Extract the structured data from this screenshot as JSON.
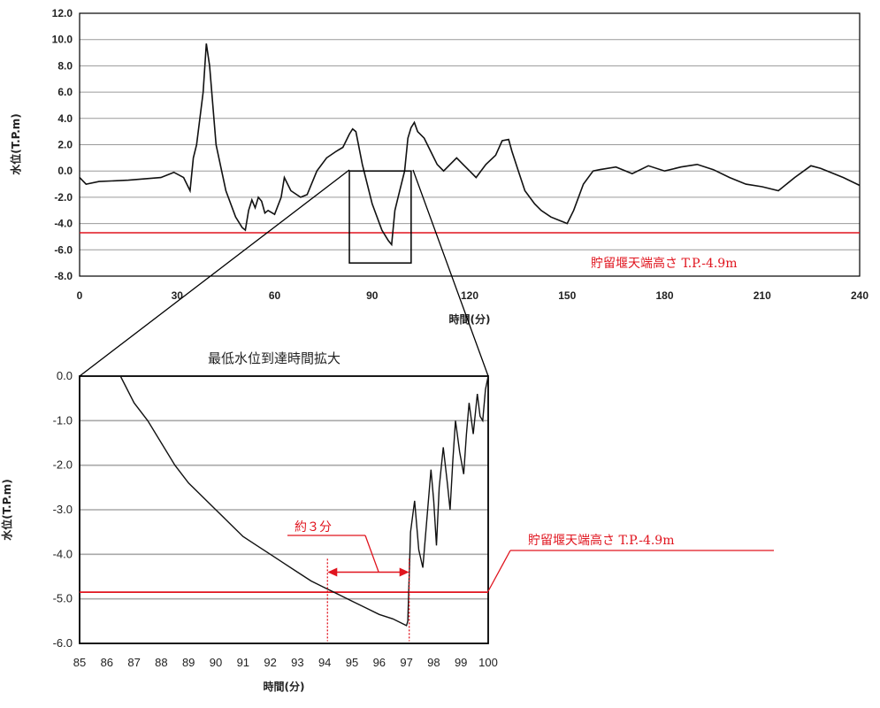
{
  "chart_data": [
    {
      "type": "line",
      "title": "",
      "xlabel": "時間(分)",
      "ylabel": "水位(T.P.m)",
      "xlim": [
        0,
        240
      ],
      "ylim": [
        -8,
        12
      ],
      "x_ticks": [
        "0",
        "30",
        "60",
        "90",
        "120",
        "150",
        "180",
        "210",
        "240"
      ],
      "y_ticks": [
        "12.0",
        "10.0",
        "8.0",
        "6.0",
        "4.0",
        "2.0",
        "0.0",
        "-2.0",
        "-4.0",
        "-6.0",
        "-8.0"
      ],
      "grid": true,
      "reference_line": {
        "label": "貯留堰天端高さ T.P.-4.9m",
        "y": -4.7,
        "color": "#e0141e"
      },
      "zoom_box": {
        "x": [
          83,
          102
        ],
        "y": [
          -7,
          0
        ]
      },
      "series": [
        {
          "color": "#111111",
          "x": [
            0,
            2,
            6,
            15,
            25,
            29,
            32,
            34,
            35,
            36,
            38,
            39,
            40,
            42,
            45,
            48,
            50,
            51,
            52,
            53,
            54,
            55,
            56,
            57,
            58,
            60,
            62,
            63,
            65,
            68,
            70,
            73,
            76,
            79,
            81,
            83,
            84,
            85,
            87,
            90,
            93,
            95,
            96,
            97,
            98,
            99,
            100,
            101,
            102,
            103,
            104,
            106,
            108,
            110,
            112,
            114,
            116,
            118,
            120,
            122,
            125,
            128,
            130,
            132,
            133,
            135,
            137,
            140,
            142,
            145,
            148,
            150,
            152,
            155,
            158,
            160,
            165,
            170,
            175,
            180,
            185,
            190,
            195,
            200,
            205,
            210,
            215,
            220,
            225,
            228,
            230,
            235,
            240
          ],
          "y": [
            -0.5,
            -1.0,
            -0.8,
            -0.7,
            -0.5,
            -0.1,
            -0.5,
            -1.5,
            1.0,
            2.0,
            6.0,
            9.7,
            8.0,
            2.0,
            -1.5,
            -3.5,
            -4.3,
            -4.5,
            -3.0,
            -2.2,
            -2.8,
            -2.0,
            -2.3,
            -3.2,
            -3.0,
            -3.3,
            -2.0,
            -0.5,
            -1.5,
            -2.0,
            -1.8,
            0.0,
            1.0,
            1.5,
            1.8,
            2.8,
            3.2,
            3.0,
            0.5,
            -2.5,
            -4.5,
            -5.3,
            -5.6,
            -3.0,
            -2.0,
            -1.0,
            0.0,
            2.5,
            3.3,
            3.7,
            3.0,
            2.5,
            1.5,
            0.5,
            0.0,
            0.5,
            1.0,
            0.5,
            0.0,
            -0.5,
            0.5,
            1.2,
            2.3,
            2.4,
            1.5,
            0.0,
            -1.5,
            -2.5,
            -3.0,
            -3.5,
            -3.8,
            -4.0,
            -3.0,
            -1.0,
            0.0,
            0.1,
            0.3,
            -0.2,
            0.4,
            0.0,
            0.3,
            0.5,
            0.1,
            -0.5,
            -1.0,
            -1.2,
            -1.5,
            -0.5,
            0.4,
            0.2,
            0.0,
            -0.5,
            -1.1
          ]
        }
      ]
    },
    {
      "type": "line",
      "title": "最低水位到達時間拡大",
      "xlabel": "時間(分)",
      "ylabel": "水位(T.P.m)",
      "xlim": [
        85,
        100
      ],
      "ylim": [
        -6,
        0
      ],
      "x_ticks": [
        "85",
        "86",
        "87",
        "88",
        "89",
        "90",
        "91",
        "92",
        "93",
        "94",
        "95",
        "96",
        "97",
        "98",
        "99",
        "100"
      ],
      "y_ticks": [
        "0.0",
        "-1.0",
        "-2.0",
        "-3.0",
        "-4.0",
        "-5.0",
        "-6.0"
      ],
      "grid": true,
      "reference_line": {
        "label": "貯留堰天端高さ T.P.-4.9m",
        "y": -4.85,
        "color": "#e0141e"
      },
      "annotation": {
        "label": "約３分",
        "x_from": 94.1,
        "x_to": 97.1,
        "y": -4.4
      },
      "series": [
        {
          "color": "#111111",
          "x": [
            86.5,
            87,
            87.5,
            88,
            88.5,
            89,
            89.5,
            90,
            90.5,
            91,
            91.5,
            92,
            92.5,
            93,
            93.5,
            94,
            94.5,
            95,
            95.5,
            96,
            96.5,
            97,
            97.05,
            97.15,
            97.3,
            97.45,
            97.6,
            97.75,
            97.9,
            98.0,
            98.1,
            98.2,
            98.35,
            98.5,
            98.6,
            98.7,
            98.8,
            98.95,
            99.1,
            99.2,
            99.3,
            99.45,
            99.6,
            99.7,
            99.8,
            99.9,
            100
          ],
          "y": [
            0.0,
            -0.6,
            -1.0,
            -1.5,
            -2.0,
            -2.4,
            -2.7,
            -3.0,
            -3.3,
            -3.6,
            -3.8,
            -4.0,
            -4.2,
            -4.4,
            -4.6,
            -4.75,
            -4.9,
            -5.05,
            -5.2,
            -5.35,
            -5.45,
            -5.6,
            -5.5,
            -3.5,
            -2.8,
            -3.9,
            -4.3,
            -3.2,
            -2.1,
            -2.8,
            -3.8,
            -2.5,
            -1.6,
            -2.4,
            -3.0,
            -1.9,
            -1.0,
            -1.7,
            -2.2,
            -1.3,
            -0.6,
            -1.3,
            -0.4,
            -0.9,
            -1.0,
            -0.3,
            0.0
          ]
        }
      ]
    }
  ]
}
